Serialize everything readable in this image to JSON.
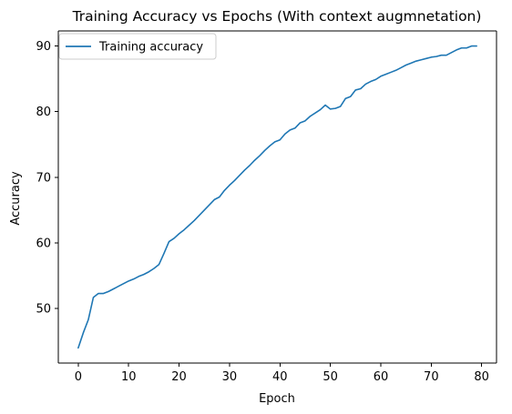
{
  "chart_data": {
    "type": "line",
    "title": "Training Accuracy vs Epochs (With context augmnetation)",
    "xlabel": "Epoch",
    "ylabel": "Accuracy",
    "xlim": [
      -3.95,
      82.95
    ],
    "ylim": [
      41.7,
      92.3
    ],
    "xticks": [
      0,
      10,
      20,
      30,
      40,
      50,
      60,
      70,
      80
    ],
    "yticks": [
      50,
      60,
      70,
      80,
      90
    ],
    "grid": false,
    "legend_position": "top-left",
    "series": [
      {
        "name": "Training accuracy",
        "color": "#1f77b4",
        "x": [
          0,
          1,
          2,
          3,
          4,
          5,
          6,
          7,
          8,
          9,
          10,
          11,
          12,
          13,
          14,
          15,
          16,
          17,
          18,
          19,
          20,
          21,
          22,
          23,
          24,
          25,
          26,
          27,
          28,
          29,
          30,
          31,
          32,
          33,
          34,
          35,
          36,
          37,
          38,
          39,
          40,
          41,
          42,
          43,
          44,
          45,
          46,
          47,
          48,
          49,
          50,
          51,
          52,
          53,
          54,
          55,
          56,
          57,
          58,
          59,
          60,
          61,
          62,
          63,
          64,
          65,
          66,
          67,
          68,
          69,
          70,
          71,
          72,
          73,
          74,
          75,
          76,
          77,
          78,
          79
        ],
        "values": [
          44.0,
          46.3,
          48.3,
          51.7,
          52.3,
          52.3,
          52.6,
          53.0,
          53.4,
          53.8,
          54.2,
          54.5,
          54.9,
          55.2,
          55.6,
          56.1,
          56.7,
          58.4,
          60.2,
          60.7,
          61.4,
          62.0,
          62.7,
          63.4,
          64.2,
          65.0,
          65.8,
          66.6,
          67.0,
          68.0,
          68.8,
          69.5,
          70.3,
          71.1,
          71.8,
          72.6,
          73.3,
          74.1,
          74.8,
          75.4,
          75.7,
          76.6,
          77.2,
          77.5,
          78.3,
          78.6,
          79.3,
          79.8,
          80.3,
          81.0,
          80.4,
          80.5,
          80.8,
          82.0,
          82.3,
          83.3,
          83.5,
          84.2,
          84.6,
          84.9,
          85.4,
          85.7,
          86.0,
          86.3,
          86.7,
          87.1,
          87.4,
          87.7,
          87.9,
          88.1,
          88.3,
          88.4,
          88.6,
          88.6,
          89.0,
          89.4,
          89.7,
          89.7,
          90.0,
          90.0
        ]
      }
    ]
  }
}
